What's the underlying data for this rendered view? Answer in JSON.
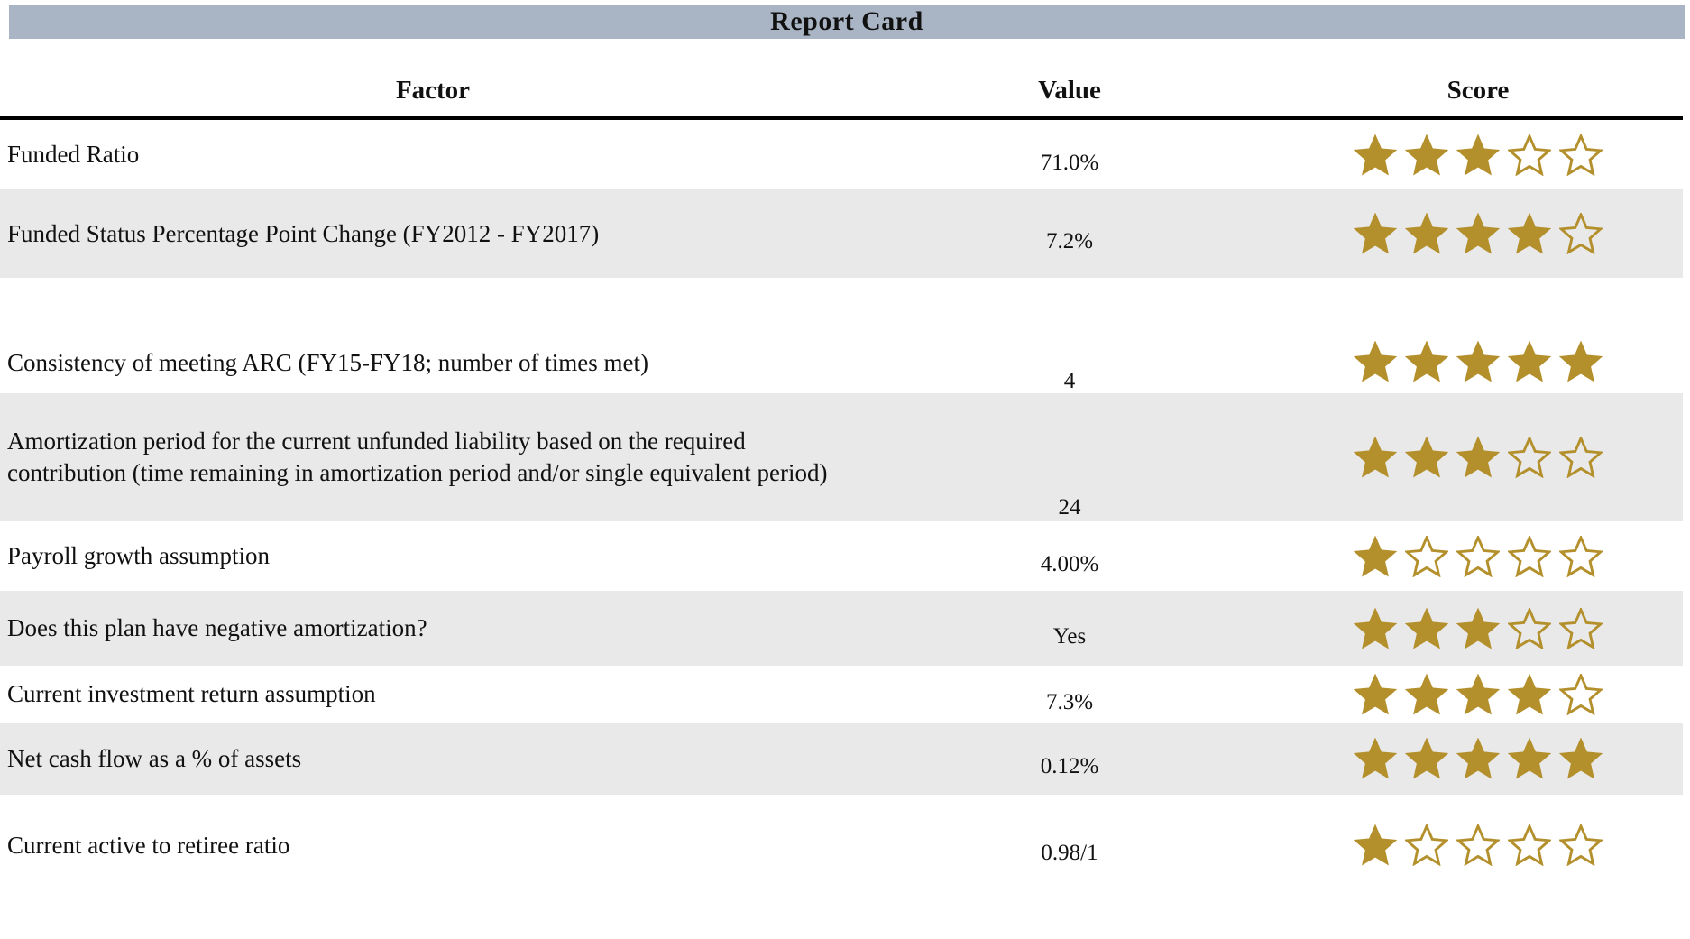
{
  "title": "Report Card",
  "columns": {
    "factor": "Factor",
    "value": "Value",
    "score": "Score"
  },
  "colors": {
    "title_bar": "#A9B5C4",
    "row_alt": "#E9E9E9",
    "star": "#B4902C",
    "header_line": "#000000"
  },
  "max_stars": 5,
  "rows": [
    {
      "factor": "Funded Ratio",
      "value": "71.0%",
      "score": 3
    },
    {
      "factor": "Funded Status Percentage Point Change (FY2012 - FY2017)",
      "value": "7.2%",
      "score": 4
    },
    {
      "factor": "Consistency of meeting ARC (FY15-FY18; number of times met)",
      "value": "4",
      "score": 5
    },
    {
      "factor": "Amortization period for the current unfunded liability based on the required contribution (time remaining in amortization period and/or single equivalent period)",
      "value": "24",
      "score": 3
    },
    {
      "factor": "Payroll growth assumption",
      "value": "4.00%",
      "score": 1
    },
    {
      "factor": "Does this plan have negative amortization?",
      "value": "Yes",
      "score": 3
    },
    {
      "factor": "Current investment return assumption",
      "value": "7.3%",
      "score": 4
    },
    {
      "factor": "Net cash flow as a % of assets",
      "value": "0.12%",
      "score": 5
    },
    {
      "factor": "Current active to retiree ratio",
      "value": "0.98/1",
      "score": 1
    }
  ]
}
